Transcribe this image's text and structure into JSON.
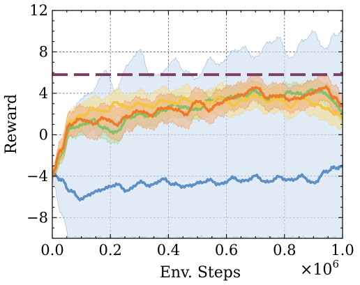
{
  "chart_data": {
    "type": "line",
    "title": "",
    "xlabel": "Env. Steps",
    "ylabel": "Reward",
    "x_multiplier_label": "×10",
    "x_multiplier_exp": "6",
    "xlim": [
      0.0,
      1.0
    ],
    "ylim": [
      -10,
      12
    ],
    "xticks": [
      0.0,
      0.2,
      0.4,
      0.6,
      0.8,
      1.0
    ],
    "xtick_labels": [
      "0.0",
      "0.2",
      "0.4",
      "0.6",
      "0.8",
      "1.0"
    ],
    "yticks": [
      -8,
      -4,
      0,
      4,
      8,
      12
    ],
    "ytick_labels": [
      "−8",
      "−4",
      "0",
      "4",
      "8",
      "12"
    ],
    "grid": true,
    "legend": "none",
    "reference_line": {
      "y": 5.8,
      "color": "#7b3f63",
      "style": "dashed"
    },
    "series": [
      {
        "color": "#5b8fc6",
        "band_color": "#cfe0f1",
        "x": [
          0.0,
          0.03,
          0.06,
          0.1,
          0.14,
          0.18,
          0.22,
          0.26,
          0.3,
          0.34,
          0.38,
          0.42,
          0.46,
          0.5,
          0.54,
          0.58,
          0.62,
          0.66,
          0.7,
          0.74,
          0.78,
          0.82,
          0.86,
          0.9,
          0.94,
          0.97,
          1.0
        ],
        "values": [
          -3.8,
          -4.3,
          -5.4,
          -6.2,
          -5.6,
          -5.2,
          -4.8,
          -5.4,
          -4.6,
          -4.9,
          -4.3,
          -4.8,
          -5.0,
          -4.7,
          -4.4,
          -4.8,
          -4.2,
          -4.5,
          -4.0,
          -4.6,
          -4.1,
          -4.4,
          -4.0,
          -4.7,
          -3.6,
          -3.2,
          -3.1
        ],
        "upper": [
          -3.4,
          -1.8,
          1.8,
          3.5,
          4.2,
          6.2,
          4.3,
          6.8,
          8.2,
          5.6,
          6.0,
          7.3,
          6.1,
          5.4,
          7.3,
          6.8,
          8.0,
          8.4,
          7.4,
          8.8,
          9.3,
          7.3,
          9.0,
          9.9,
          8.2,
          9.6,
          9.9
        ],
        "lower": [
          -4.4,
          -7.5,
          -10,
          -10,
          -10,
          -10,
          -10,
          -10,
          -10,
          -10,
          -10,
          -10,
          -10,
          -10,
          -10,
          -10,
          -10,
          -10,
          -10,
          -10,
          -10,
          -10,
          -10,
          -10,
          -10,
          -10,
          -10
        ]
      },
      {
        "color": "#88c06a",
        "band_color": "#b9dba5",
        "x": [
          0.0,
          0.03,
          0.06,
          0.1,
          0.14,
          0.18,
          0.22,
          0.26,
          0.3,
          0.34,
          0.38,
          0.42,
          0.46,
          0.5,
          0.54,
          0.58,
          0.62,
          0.66,
          0.7,
          0.74,
          0.78,
          0.82,
          0.86,
          0.9,
          0.94,
          0.97,
          1.0
        ],
        "values": [
          -3.9,
          -2.0,
          0.6,
          0.9,
          1.4,
          0.6,
          0.2,
          1.6,
          2.0,
          1.8,
          2.3,
          2.9,
          2.6,
          2.4,
          3.3,
          3.5,
          3.6,
          3.8,
          4.2,
          3.4,
          3.7,
          4.1,
          3.9,
          4.3,
          4.0,
          3.2,
          2.1
        ],
        "upper": [
          -3.5,
          -1.2,
          1.5,
          1.9,
          2.3,
          1.8,
          1.3,
          2.6,
          3.0,
          2.8,
          3.4,
          3.9,
          3.6,
          3.4,
          4.2,
          4.4,
          4.6,
          4.9,
          5.2,
          4.4,
          4.7,
          5.0,
          4.9,
          5.3,
          5.0,
          4.2,
          3.1
        ],
        "lower": [
          -4.3,
          -2.8,
          -0.3,
          -0.1,
          0.4,
          -0.5,
          -0.9,
          0.6,
          1.0,
          0.8,
          1.3,
          1.8,
          1.6,
          1.4,
          2.4,
          2.6,
          2.6,
          2.7,
          3.2,
          2.4,
          2.7,
          3.2,
          2.9,
          3.3,
          3.0,
          2.2,
          1.1
        ]
      },
      {
        "color": "#f5c542",
        "band_color": "#f8dc8d",
        "x": [
          0.0,
          0.03,
          0.06,
          0.1,
          0.14,
          0.18,
          0.22,
          0.26,
          0.3,
          0.34,
          0.38,
          0.42,
          0.46,
          0.5,
          0.54,
          0.58,
          0.62,
          0.66,
          0.7,
          0.74,
          0.78,
          0.82,
          0.86,
          0.9,
          0.94,
          0.97,
          1.0
        ],
        "values": [
          -3.8,
          -1.6,
          1.2,
          1.8,
          2.5,
          2.2,
          3.1,
          2.6,
          3.0,
          2.7,
          3.3,
          3.0,
          3.5,
          2.8,
          3.1,
          3.6,
          2.9,
          3.4,
          3.8,
          3.2,
          3.5,
          2.7,
          3.6,
          3.0,
          2.6,
          2.1,
          1.8
        ],
        "upper": [
          -3.3,
          -0.6,
          2.4,
          3.0,
          3.7,
          3.5,
          4.4,
          3.8,
          4.3,
          3.9,
          4.6,
          4.2,
          4.8,
          4.0,
          4.3,
          4.9,
          4.1,
          4.6,
          5.0,
          4.4,
          4.7,
          3.9,
          4.8,
          4.2,
          3.8,
          3.3,
          3.0
        ],
        "lower": [
          -4.3,
          -2.6,
          0.0,
          0.6,
          1.3,
          0.9,
          1.8,
          1.4,
          1.7,
          1.5,
          2.0,
          1.8,
          2.2,
          1.6,
          1.9,
          2.3,
          1.7,
          2.2,
          2.6,
          2.0,
          2.3,
          1.5,
          2.4,
          1.8,
          1.4,
          0.9,
          0.6
        ]
      },
      {
        "color": "#ee7a2b",
        "band_color": "#f3b07f",
        "x": [
          0.0,
          0.03,
          0.06,
          0.1,
          0.14,
          0.18,
          0.22,
          0.26,
          0.3,
          0.34,
          0.38,
          0.42,
          0.46,
          0.5,
          0.54,
          0.58,
          0.62,
          0.66,
          0.7,
          0.74,
          0.78,
          0.82,
          0.86,
          0.9,
          0.94,
          0.97,
          1.0
        ],
        "values": [
          -3.7,
          -1.5,
          1.0,
          1.5,
          1.1,
          1.6,
          1.0,
          1.8,
          2.3,
          1.9,
          2.6,
          2.5,
          2.0,
          3.3,
          2.4,
          3.1,
          3.6,
          3.9,
          4.6,
          3.6,
          3.8,
          3.4,
          3.6,
          4.1,
          4.6,
          3.6,
          2.8
        ],
        "upper": [
          -3.2,
          -0.5,
          2.2,
          2.8,
          2.5,
          3.0,
          2.6,
          3.2,
          3.6,
          3.2,
          3.9,
          3.8,
          3.4,
          4.6,
          3.7,
          4.4,
          4.8,
          5.1,
          5.8,
          4.8,
          5.0,
          4.6,
          4.8,
          5.3,
          5.8,
          4.8,
          4.0
        ],
        "lower": [
          -4.2,
          -2.5,
          -0.2,
          0.2,
          -0.5,
          0.2,
          -0.6,
          0.3,
          0.9,
          0.5,
          1.2,
          1.1,
          0.6,
          1.9,
          1.1,
          1.8,
          2.4,
          2.6,
          3.4,
          2.4,
          2.6,
          2.2,
          2.4,
          2.8,
          3.4,
          2.4,
          1.6
        ]
      }
    ]
  }
}
